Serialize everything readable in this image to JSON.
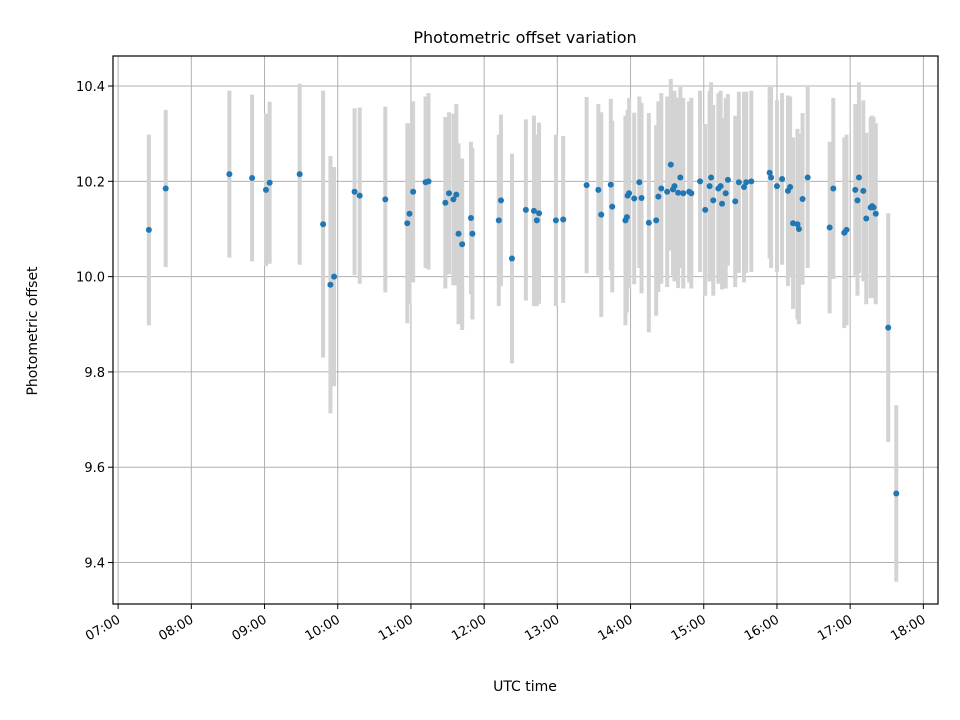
{
  "chart_data": {
    "type": "scatter",
    "title": "Photometric offset variation",
    "xlabel": "UTC time",
    "ylabel": "Photometric offset",
    "x_unit": "hours UTC",
    "xlim": [
      6.93,
      18.2
    ],
    "ylim": [
      9.313,
      10.463
    ],
    "xticks": [
      {
        "value": 7,
        "label": "07:00"
      },
      {
        "value": 8,
        "label": "08:00"
      },
      {
        "value": 9,
        "label": "09:00"
      },
      {
        "value": 10,
        "label": "10:00"
      },
      {
        "value": 11,
        "label": "11:00"
      },
      {
        "value": 12,
        "label": "12:00"
      },
      {
        "value": 13,
        "label": "13:00"
      },
      {
        "value": 14,
        "label": "14:00"
      },
      {
        "value": 15,
        "label": "15:00"
      },
      {
        "value": 16,
        "label": "16:00"
      },
      {
        "value": 17,
        "label": "17:00"
      },
      {
        "value": 18,
        "label": "18:00"
      }
    ],
    "yticks": [
      {
        "value": 9.4,
        "label": "9.4"
      },
      {
        "value": 9.6,
        "label": "9.6"
      },
      {
        "value": 9.8,
        "label": "9.8"
      },
      {
        "value": 10.0,
        "label": "10.0"
      },
      {
        "value": 10.2,
        "label": "10.2"
      },
      {
        "value": 10.4,
        "label": "10.4"
      }
    ],
    "grid": true,
    "marker_color": "#1f77b4",
    "errorbar_color": "#d3d3d3",
    "points": [
      [
        7.42,
        10.098,
        0.2
      ],
      [
        7.65,
        10.185,
        0.165
      ],
      [
        8.52,
        10.215,
        0.175
      ],
      [
        8.83,
        10.207,
        0.175
      ],
      [
        9.02,
        10.182,
        0.16
      ],
      [
        9.07,
        10.197,
        0.17
      ],
      [
        9.48,
        10.215,
        0.19
      ],
      [
        9.8,
        10.11,
        0.28
      ],
      [
        9.9,
        9.983,
        0.27
      ],
      [
        9.95,
        10.0,
        0.23
      ],
      [
        10.23,
        10.178,
        0.175
      ],
      [
        10.3,
        10.17,
        0.185
      ],
      [
        10.65,
        10.162,
        0.195
      ],
      [
        10.95,
        10.112,
        0.21
      ],
      [
        10.98,
        10.132,
        0.19
      ],
      [
        11.03,
        10.178,
        0.19
      ],
      [
        11.2,
        10.198,
        0.18
      ],
      [
        11.24,
        10.2,
        0.185
      ],
      [
        11.47,
        10.155,
        0.18
      ],
      [
        11.52,
        10.175,
        0.17
      ],
      [
        11.58,
        10.162,
        0.18
      ],
      [
        11.62,
        10.172,
        0.19
      ],
      [
        11.65,
        10.09,
        0.19
      ],
      [
        11.7,
        10.068,
        0.18
      ],
      [
        11.82,
        10.123,
        0.16
      ],
      [
        11.84,
        10.09,
        0.18
      ],
      [
        12.2,
        10.118,
        0.18
      ],
      [
        12.23,
        10.16,
        0.18
      ],
      [
        12.38,
        10.038,
        0.22
      ],
      [
        12.57,
        10.14,
        0.19
      ],
      [
        12.68,
        10.138,
        0.2
      ],
      [
        12.72,
        10.118,
        0.18
      ],
      [
        12.75,
        10.133,
        0.19
      ],
      [
        12.98,
        10.118,
        0.18
      ],
      [
        13.08,
        10.12,
        0.175
      ],
      [
        13.4,
        10.192,
        0.185
      ],
      [
        13.56,
        10.182,
        0.18
      ],
      [
        13.6,
        10.13,
        0.215
      ],
      [
        13.73,
        10.193,
        0.18
      ],
      [
        13.75,
        10.147,
        0.18
      ],
      [
        13.93,
        10.118,
        0.22
      ],
      [
        13.95,
        10.125,
        0.2
      ],
      [
        13.96,
        10.17,
        0.18
      ],
      [
        13.98,
        10.175,
        0.2
      ],
      [
        14.05,
        10.164,
        0.18
      ],
      [
        14.12,
        10.198,
        0.18
      ],
      [
        14.15,
        10.165,
        0.2
      ],
      [
        14.25,
        10.113,
        0.23
      ],
      [
        14.35,
        10.118,
        0.2
      ],
      [
        14.38,
        10.168,
        0.2
      ],
      [
        14.42,
        10.185,
        0.2
      ],
      [
        14.5,
        10.178,
        0.2
      ],
      [
        14.55,
        10.235,
        0.18
      ],
      [
        14.58,
        10.183,
        0.18
      ],
      [
        14.6,
        10.19,
        0.2
      ],
      [
        14.65,
        10.176,
        0.2
      ],
      [
        14.68,
        10.208,
        0.19
      ],
      [
        14.72,
        10.175,
        0.2
      ],
      [
        14.8,
        10.178,
        0.19
      ],
      [
        14.83,
        10.175,
        0.2
      ],
      [
        14.95,
        10.2,
        0.19
      ],
      [
        15.02,
        10.14,
        0.18
      ],
      [
        15.08,
        10.19,
        0.2
      ],
      [
        15.1,
        10.208,
        0.2
      ],
      [
        15.13,
        10.16,
        0.2
      ],
      [
        15.2,
        10.185,
        0.2
      ],
      [
        15.23,
        10.19,
        0.2
      ],
      [
        15.25,
        10.153,
        0.18
      ],
      [
        15.3,
        10.175,
        0.2
      ],
      [
        15.33,
        10.203,
        0.18
      ],
      [
        15.43,
        10.158,
        0.18
      ],
      [
        15.48,
        10.198,
        0.19
      ],
      [
        15.55,
        10.188,
        0.2
      ],
      [
        15.58,
        10.198,
        0.19
      ],
      [
        15.65,
        10.2,
        0.19
      ],
      [
        15.9,
        10.218,
        0.18
      ],
      [
        15.92,
        10.208,
        0.19
      ],
      [
        16.0,
        10.19,
        0.18
      ],
      [
        16.07,
        10.205,
        0.18
      ],
      [
        16.15,
        10.18,
        0.2
      ],
      [
        16.18,
        10.188,
        0.19
      ],
      [
        16.22,
        10.112,
        0.18
      ],
      [
        16.28,
        10.11,
        0.2
      ],
      [
        16.3,
        10.1,
        0.2
      ],
      [
        16.35,
        10.163,
        0.18
      ],
      [
        16.42,
        10.208,
        0.19
      ],
      [
        16.72,
        10.103,
        0.18
      ],
      [
        16.77,
        10.185,
        0.19
      ],
      [
        16.92,
        10.092,
        0.2
      ],
      [
        16.95,
        10.098,
        0.2
      ],
      [
        17.07,
        10.182,
        0.18
      ],
      [
        17.1,
        10.16,
        0.2
      ],
      [
        17.12,
        10.208,
        0.2
      ],
      [
        17.18,
        10.18,
        0.19
      ],
      [
        17.22,
        10.122,
        0.18
      ],
      [
        17.28,
        10.145,
        0.19
      ],
      [
        17.3,
        10.148,
        0.19
      ],
      [
        17.32,
        10.145,
        0.19
      ],
      [
        17.35,
        10.132,
        0.19
      ],
      [
        17.52,
        9.893,
        0.24
      ],
      [
        17.63,
        9.545,
        0.185
      ]
    ]
  }
}
